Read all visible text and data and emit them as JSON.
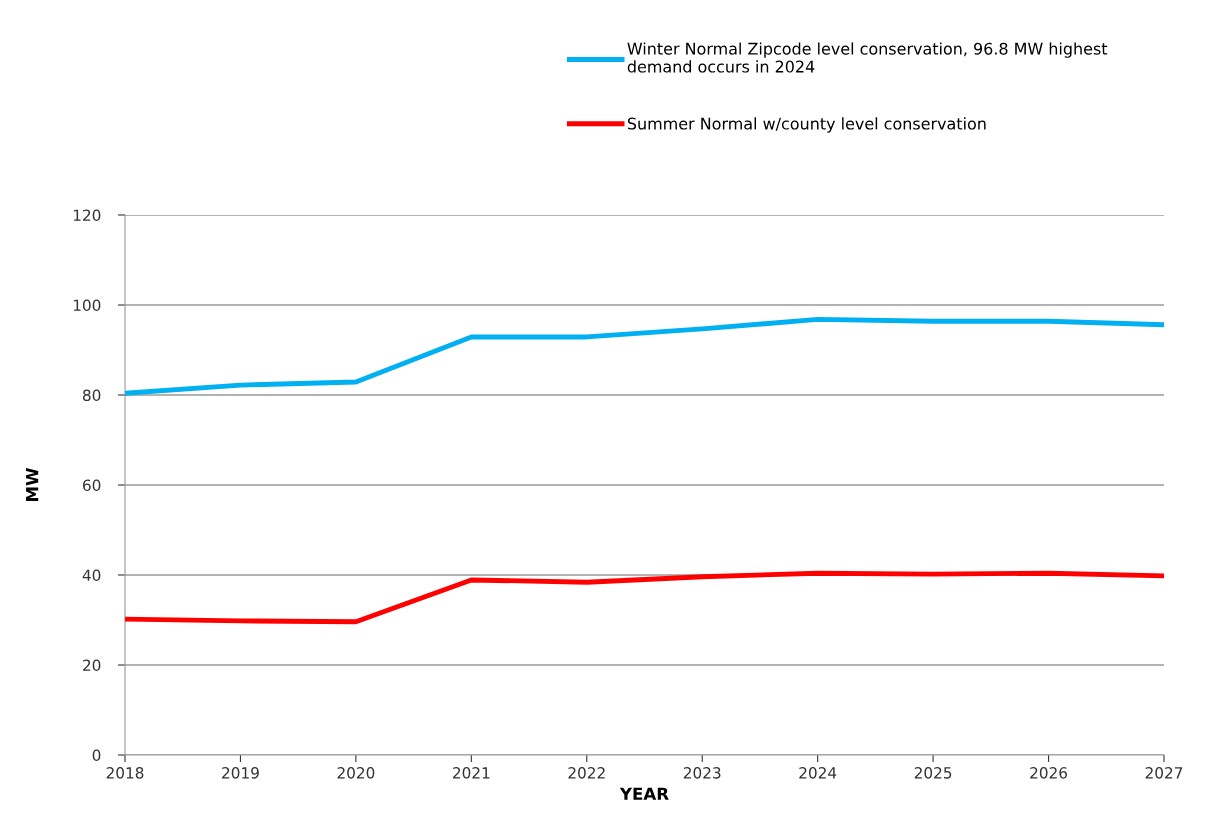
{
  "chart_data": {
    "type": "line",
    "xlabel": "YEAR",
    "ylabel": "MW",
    "x": [
      2018,
      2019,
      2020,
      2021,
      2022,
      2023,
      2024,
      2025,
      2026,
      2027
    ],
    "series": [
      {
        "name": "Winter Normal Zipcode level conservation, 96.8 MW highest\ndemand occurs in 2024",
        "color": "#00b0f0",
        "values": [
          80.4,
          82.2,
          82.9,
          92.9,
          92.9,
          94.7,
          96.8,
          96.4,
          96.4,
          95.6
        ]
      },
      {
        "name": "Summer Normal w/county level conservation",
        "color": "#ff0000",
        "values": [
          30.2,
          29.8,
          29.6,
          38.9,
          38.4,
          39.6,
          40.4,
          40.2,
          40.4,
          39.8
        ]
      }
    ],
    "xlim": [
      2018,
      2027
    ],
    "xticks": [
      2018,
      2019,
      2020,
      2021,
      2022,
      2023,
      2024,
      2025,
      2026,
      2027
    ],
    "ylim": [
      0,
      120
    ],
    "yticks": [
      0,
      20,
      40,
      60,
      80,
      100,
      120
    ],
    "grid": "y",
    "legend": "top right",
    "marker": "none",
    "line_style": "solid"
  }
}
